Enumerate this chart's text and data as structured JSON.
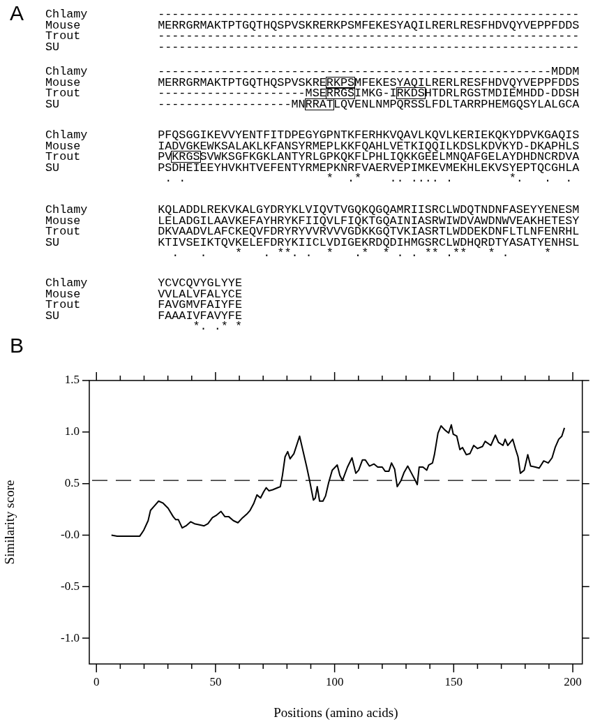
{
  "chart_data": [
    {
      "type": "other",
      "title": "A",
      "annotations": [
        "Chlamy          ------------------------------------------------------------\nMouse           MERRGRMAKTPTGQTHQSPVSKRERKPSMFEKESYAQILRERLRESFHDVQYVEPPFDDS\nTrout           ------------------------------------------------------------\nSU              ------------------------------------------------------------",
        "Chlamy          --------------------------------------------------------MDDM\nMouse           MERRGRMAKTPTGQTHQSPVSKRERKPSMFEKESYAQILRERLRESFHDVQYVEPPFDDS\nTrout           ---------------------MSERRGSIMKG-IRKDSHTDRLRGSTMDIEMHDD-DDSH\nSU              -------------------MNRRATLQVENLNMPQRSSLFDLTARRPHEMGQSYLALGCA",
        "Chlamy          PFQSGGIKEVVYENTFITDPEGYGPNTKFERHKVQAVLKQVLKERIEKQKYDPVKGAQIS\nMouse           IADVGKEWKSALAKLKFANSYRMEPLKKFQAHLVETKIQQILKDSLKDVKYD-DKAPHLS\nTrout           PVKRGSSVWKSGFKGKLANTYRLGPKQKFLPHLIQKKGEELMNQAFGELAYDHDNCRDVA\nSU              PSDHEIEEYHVKHTVEFENTYRMEPKNRFVAERVEPIMKEVMEKHLEKVSYEPTQCGHLA\n                 . .                    *  .*    .. .... .        *.   .  .",
        "Chlamy          KQLADDLREKVKALGYDRYKLVIQVTVGQKQGQAMRIISRCLWDQTNDNFASEYYENESM\nMouse           LELADGILAAVKEFAYHRYKFIIQVLFIQKTGQAINIASRWIWDVAWDNWVEAKHETESY\nTrout           DKVAADVLAFCKEQVFDRYRYVVRVVVGDKKGQTVKIASRTLWDDEKDNFLTLNFENRHL\nSU              KTIVSEIKTQVKELEFDRYKIICLVDIGEKRDQDIHMGSRCLWDHQRDTYASATYENHSL\n                  .   .    *   . **. .  *   .*  * . . ** .**   * .     *",
        "Chlamy          YCVCQVYGLYYE\nMouse           VVLALVFALYCE\nTrout           FAVGMVFAIYFE\nSU              FAAAIVFAVYFE\n                     *. .* *"
      ]
    },
    {
      "type": "line",
      "title": "B",
      "xlabel": "Positions (amino acids)",
      "ylabel": "Similarity score",
      "color": "#000000",
      "legend": false,
      "xlim": [
        -3,
        204
      ],
      "ylim": [
        -1.25,
        1.5
      ],
      "xticks": [
        0,
        {
          "value": 10,
          "label": null
        },
        {
          "value": 20,
          "label": null
        },
        {
          "value": 30,
          "label": null
        },
        {
          "value": 40,
          "label": null
        },
        50,
        {
          "value": 60,
          "label": null
        },
        {
          "value": 70,
          "label": null
        },
        {
          "value": 80,
          "label": null
        },
        {
          "value": 90,
          "label": null
        },
        100,
        {
          "value": 110,
          "label": null
        },
        {
          "value": 120,
          "label": null
        },
        {
          "value": 130,
          "label": null
        },
        {
          "value": 140,
          "label": null
        },
        150,
        {
          "value": 160,
          "label": null
        },
        {
          "value": 170,
          "label": null
        },
        {
          "value": 180,
          "label": null
        },
        {
          "value": 190,
          "label": null
        },
        200
      ],
      "yticks": [
        {
          "value": -1,
          "label": "-1.0"
        },
        {
          "value": -0.5,
          "label": "-0.5"
        },
        {
          "value": 0,
          "label": "-0.0"
        },
        {
          "value": 0.5,
          "label": "0.5"
        },
        {
          "value": 1,
          "label": "1.0"
        },
        {
          "value": 1.5,
          "label": "1.5"
        }
      ],
      "ref_lines": [
        {
          "axis": "y",
          "value": 0.53,
          "line_style": "dashed",
          "color": "#000000"
        }
      ],
      "x": [
        6.3,
        8.7,
        18.2,
        19.8,
        21.7,
        22.7,
        24.6,
        26.1,
        28,
        30.1,
        32.2,
        33.3,
        34.4,
        36,
        37.6,
        39.6,
        41.2,
        43.3,
        45.2,
        46.8,
        48.7,
        50.2,
        52.3,
        53.9,
        55.5,
        57.5,
        59.4,
        61,
        63.4,
        64.5,
        66.1,
        67.4,
        68.9,
        70.2,
        71.3,
        72.4,
        74,
        76.1,
        77.2,
        78.1,
        79.2,
        80.3,
        81.3,
        82.9,
        85.3,
        86.4,
        88.3,
        89.5,
        91.1,
        91.9,
        92.7,
        93.7,
        95.1,
        96.2,
        97.5,
        99,
        101.1,
        102.2,
        103.3,
        105.4,
        107.3,
        108.9,
        110.1,
        111.7,
        112.9,
        114.6,
        116.5,
        118.1,
        120,
        121.2,
        122.8,
        123.9,
        125.2,
        126.3,
        127.9,
        129.2,
        130.7,
        132.3,
        133.9,
        134.7,
        135.5,
        137.1,
        138.7,
        139.5,
        141.1,
        141.9,
        143.4,
        144.7,
        146.3,
        147.9,
        149,
        149.8,
        151.3,
        152.6,
        153.7,
        155.3,
        156.8,
        158.4,
        160,
        162.1,
        163.2,
        165.6,
        167.5,
        168.8,
        170.7,
        171.6,
        172.7,
        174.8,
        175.9,
        177,
        178,
        179.6,
        181.1,
        182.3,
        184.3,
        185.9,
        187.8,
        189.7,
        191.3,
        192.6,
        194.1,
        195.4,
        196.5
      ],
      "values": [
        0,
        -0.01,
        -0.01,
        0.045,
        0.14,
        0.24,
        0.29,
        0.33,
        0.31,
        0.26,
        0.18,
        0.15,
        0.15,
        0.07,
        0.09,
        0.13,
        0.11,
        0.1,
        0.09,
        0.11,
        0.17,
        0.19,
        0.23,
        0.18,
        0.18,
        0.14,
        0.12,
        0.16,
        0.21,
        0.24,
        0.31,
        0.39,
        0.36,
        0.42,
        0.46,
        0.43,
        0.44,
        0.46,
        0.47,
        0.58,
        0.76,
        0.81,
        0.74,
        0.79,
        0.96,
        0.85,
        0.66,
        0.53,
        0.34,
        0.36,
        0.47,
        0.33,
        0.33,
        0.38,
        0.51,
        0.63,
        0.68,
        0.58,
        0.53,
        0.66,
        0.75,
        0.6,
        0.63,
        0.73,
        0.73,
        0.67,
        0.69,
        0.66,
        0.66,
        0.62,
        0.62,
        0.7,
        0.64,
        0.47,
        0.53,
        0.61,
        0.67,
        0.6,
        0.53,
        0.49,
        0.66,
        0.66,
        0.63,
        0.68,
        0.7,
        0.78,
        0.99,
        1.06,
        1.02,
        0.99,
        1.07,
        0.98,
        0.96,
        0.83,
        0.85,
        0.78,
        0.79,
        0.87,
        0.84,
        0.86,
        0.91,
        0.87,
        0.97,
        0.9,
        0.87,
        0.93,
        0.87,
        0.93,
        0.84,
        0.76,
        0.6,
        0.63,
        0.78,
        0.67,
        0.66,
        0.65,
        0.72,
        0.7,
        0.75,
        0.85,
        0.93,
        0.96,
        1.04
      ]
    }
  ]
}
